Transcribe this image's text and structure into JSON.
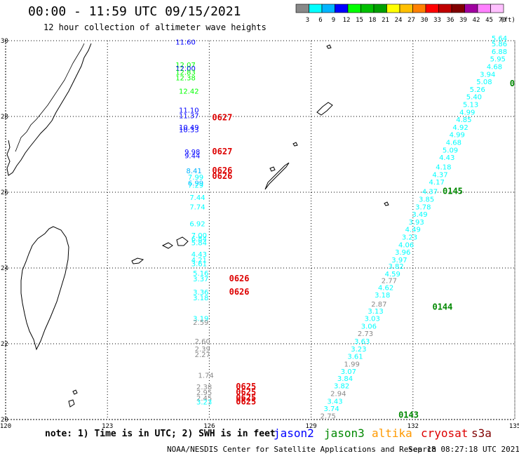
{
  "header": {
    "title": "00:00 - 11:59 UTC 09/15/2021",
    "subtitle": "12 hour collection of altimeter wave heights"
  },
  "color_scale": {
    "colors": [
      "#888888",
      "#00ffff",
      "#00b4ff",
      "#0000ff",
      "#00ff00",
      "#00c000",
      "#00a000",
      "#ffff00",
      "#ffc000",
      "#ff8000",
      "#ff0000",
      "#c00000",
      "#800000",
      "#a000a0",
      "#ff80ff",
      "#ffc0ff"
    ],
    "labels": [
      "3",
      "6",
      "9",
      "12",
      "15",
      "18",
      "21",
      "24",
      "27",
      "30",
      "33",
      "36",
      "39",
      "42",
      "45",
      "70"
    ],
    "unit": "(ft)"
  },
  "axes": {
    "lon_labels": [
      "120",
      "123",
      "126",
      "129",
      "132",
      "135"
    ],
    "lat_labels": [
      "20",
      "22",
      "24",
      "26",
      "28",
      "30"
    ],
    "lon_values": [
      120,
      123,
      126,
      129,
      132,
      135
    ],
    "lat_values": [
      20,
      22,
      24,
      26,
      28,
      30
    ]
  },
  "time_labels": [
    {
      "text": "0627",
      "lon": 126.0,
      "lat": 27.9,
      "mission": "cryosat"
    },
    {
      "text": "0627",
      "lon": 126.0,
      "lat": 27.0,
      "mission": "cryosat"
    },
    {
      "text": "0626",
      "lon": 126.0,
      "lat": 26.5,
      "mission": "cryosat"
    },
    {
      "text": "0626",
      "lon": 126.0,
      "lat": 26.35,
      "mission": "cryosat"
    },
    {
      "text": "0626",
      "lon": 126.5,
      "lat": 23.65,
      "mission": "cryosat"
    },
    {
      "text": "0626",
      "lon": 126.5,
      "lat": 23.3,
      "mission": "cryosat"
    },
    {
      "text": "0625",
      "lon": 126.7,
      "lat": 20.8,
      "mission": "cryosat"
    },
    {
      "text": "0625",
      "lon": 126.7,
      "lat": 20.65,
      "mission": "cryosat"
    },
    {
      "text": "0625",
      "lon": 126.7,
      "lat": 20.5,
      "mission": "cryosat"
    },
    {
      "text": "0625",
      "lon": 126.7,
      "lat": 20.4,
      "mission": "cryosat"
    },
    {
      "text": "0145",
      "lon": 132.5,
      "lat": 25.95,
      "mission": "jason3"
    },
    {
      "text": "0144",
      "lon": 132.2,
      "lat": 22.9,
      "mission": "jason3"
    },
    {
      "text": "0143",
      "lon": 131.2,
      "lat": 20.05,
      "mission": "jason3"
    },
    {
      "text": "0",
      "lon": 134.9,
      "lat": 28.8,
      "mission": "jason3"
    }
  ],
  "wave_heights": [
    {
      "v": "11.60",
      "lon": 125.3,
      "lat": 29.9,
      "c": "#0000ff"
    },
    {
      "v": "12.07",
      "lon": 125.3,
      "lat": 29.3,
      "c": "#00ff00"
    },
    {
      "v": "12.00",
      "lon": 125.3,
      "lat": 29.2,
      "c": "#0000ff"
    },
    {
      "v": "12.83",
      "lon": 125.3,
      "lat": 29.1,
      "c": "#00ff00"
    },
    {
      "v": "12.38",
      "lon": 125.3,
      "lat": 28.95,
      "c": "#00ff00"
    },
    {
      "v": "12.42",
      "lon": 125.4,
      "lat": 28.6,
      "c": "#00ff00"
    },
    {
      "v": "11.10",
      "lon": 125.4,
      "lat": 28.1,
      "c": "#0000ff"
    },
    {
      "v": "11.37",
      "lon": 125.4,
      "lat": 27.95,
      "c": "#0000ff"
    },
    {
      "v": "10.49",
      "lon": 125.4,
      "lat": 27.65,
      "c": "#0000ff"
    },
    {
      "v": "10.33",
      "lon": 125.4,
      "lat": 27.58,
      "c": "#0000ff"
    },
    {
      "v": "9.98",
      "lon": 125.5,
      "lat": 27.0,
      "c": "#0000ff"
    },
    {
      "v": "9.44",
      "lon": 125.5,
      "lat": 26.9,
      "c": "#0000ff"
    },
    {
      "v": "8.41",
      "lon": 125.55,
      "lat": 26.5,
      "c": "#00b4ff"
    },
    {
      "v": "7.99",
      "lon": 125.6,
      "lat": 26.33,
      "c": "#00ffff"
    },
    {
      "v": "6.99",
      "lon": 125.6,
      "lat": 26.18,
      "c": "#00b4ff"
    },
    {
      "v": "7.29",
      "lon": 125.6,
      "lat": 26.12,
      "c": "#00ffff"
    },
    {
      "v": "7.44",
      "lon": 125.65,
      "lat": 25.8,
      "c": "#00ffff"
    },
    {
      "v": "7.74",
      "lon": 125.65,
      "lat": 25.55,
      "c": "#00ffff"
    },
    {
      "v": "6.92",
      "lon": 125.65,
      "lat": 25.1,
      "c": "#00ffff"
    },
    {
      "v": "7.00",
      "lon": 125.7,
      "lat": 24.8,
      "c": "#00ffff"
    },
    {
      "v": "6.84",
      "lon": 125.7,
      "lat": 24.7,
      "c": "#00ffff"
    },
    {
      "v": "5.84",
      "lon": 125.7,
      "lat": 24.6,
      "c": "#00ffff"
    },
    {
      "v": "4.43",
      "lon": 125.7,
      "lat": 24.3,
      "c": "#00ffff"
    },
    {
      "v": "4.21",
      "lon": 125.7,
      "lat": 24.15,
      "c": "#00ffff"
    },
    {
      "v": "3.61",
      "lon": 125.7,
      "lat": 24.05,
      "c": "#00ffff"
    },
    {
      "v": "5.16",
      "lon": 125.75,
      "lat": 23.8,
      "c": "#00ffff"
    },
    {
      "v": "3.37",
      "lon": 125.75,
      "lat": 23.65,
      "c": "#00ffff"
    },
    {
      "v": "3.36",
      "lon": 125.75,
      "lat": 23.3,
      "c": "#00ffff"
    },
    {
      "v": "3.18",
      "lon": 125.75,
      "lat": 23.15,
      "c": "#00ffff"
    },
    {
      "v": "3.19",
      "lon": 125.75,
      "lat": 22.6,
      "c": "#00ffff"
    },
    {
      "v": "2.59",
      "lon": 125.75,
      "lat": 22.5,
      "c": "#888888"
    },
    {
      "v": "2.60",
      "lon": 125.8,
      "lat": 22.0,
      "c": "#888888"
    },
    {
      "v": "2.39",
      "lon": 125.8,
      "lat": 21.8,
      "c": "#888888"
    },
    {
      "v": "2.27",
      "lon": 125.8,
      "lat": 21.65,
      "c": "#888888"
    },
    {
      "v": "1.74",
      "lon": 125.9,
      "lat": 21.1,
      "c": "#888888"
    },
    {
      "v": "2.38",
      "lon": 125.85,
      "lat": 20.8,
      "c": "#888888"
    },
    {
      "v": "2.95",
      "lon": 125.85,
      "lat": 20.65,
      "c": "#888888"
    },
    {
      "v": "2.45",
      "lon": 125.85,
      "lat": 20.5,
      "c": "#888888"
    },
    {
      "v": "3.23",
      "lon": 125.85,
      "lat": 20.4,
      "c": "#00ffff"
    },
    {
      "v": "5.64",
      "lon": 134.7,
      "lat": 30.0,
      "c": "#00ffff"
    },
    {
      "v": "5.86",
      "lon": 134.8,
      "lat": 29.85,
      "c": "#00ffff"
    },
    {
      "v": "6.88",
      "lon": 134.7,
      "lat": 29.65,
      "c": "#00ffff"
    },
    {
      "v": "5.95",
      "lon": 134.5,
      "lat": 29.45,
      "c": "#00ffff"
    },
    {
      "v": "4.68",
      "lon": 134.4,
      "lat": 29.25,
      "c": "#00ffff"
    },
    {
      "v": "3.94",
      "lon": 134.2,
      "lat": 29.05,
      "c": "#00ffff"
    },
    {
      "v": "5.08",
      "lon": 134.1,
      "lat": 28.85,
      "c": "#00ffff"
    },
    {
      "v": "5.26",
      "lon": 133.9,
      "lat": 28.65,
      "c": "#00ffff"
    },
    {
      "v": "5.40",
      "lon": 133.8,
      "lat": 28.45,
      "c": "#00ffff"
    },
    {
      "v": "5.13",
      "lon": 133.7,
      "lat": 28.25,
      "c": "#00ffff"
    },
    {
      "v": "4.99",
      "lon": 133.6,
      "lat": 28.05,
      "c": "#00ffff"
    },
    {
      "v": "4.85",
      "lon": 133.5,
      "lat": 27.85,
      "c": "#00ffff"
    },
    {
      "v": "4.92",
      "lon": 133.4,
      "lat": 27.65,
      "c": "#00ffff"
    },
    {
      "v": "4.99",
      "lon": 133.3,
      "lat": 27.45,
      "c": "#00ffff"
    },
    {
      "v": "4.68",
      "lon": 133.2,
      "lat": 27.25,
      "c": "#00ffff"
    },
    {
      "v": "5.09",
      "lon": 133.1,
      "lat": 27.05,
      "c": "#00ffff"
    },
    {
      "v": "4.43",
      "lon": 133.0,
      "lat": 26.85,
      "c": "#00ffff"
    },
    {
      "v": "4.18",
      "lon": 132.9,
      "lat": 26.6,
      "c": "#00ffff"
    },
    {
      "v": "4.37",
      "lon": 132.8,
      "lat": 26.4,
      "c": "#00ffff"
    },
    {
      "v": "4.17",
      "lon": 132.7,
      "lat": 26.2,
      "c": "#00ffff"
    },
    {
      "v": "4.37",
      "lon": 132.5,
      "lat": 25.95,
      "c": "#00ffff"
    },
    {
      "v": "3.85",
      "lon": 132.4,
      "lat": 25.75,
      "c": "#00ffff"
    },
    {
      "v": "3.78",
      "lon": 132.3,
      "lat": 25.55,
      "c": "#00ffff"
    },
    {
      "v": "3.49",
      "lon": 132.2,
      "lat": 25.35,
      "c": "#00ffff"
    },
    {
      "v": "3.93",
      "lon": 132.1,
      "lat": 25.15,
      "c": "#00ffff"
    },
    {
      "v": "4.49",
      "lon": 132.0,
      "lat": 24.95,
      "c": "#00ffff"
    },
    {
      "v": "3.23",
      "lon": 131.9,
      "lat": 24.75,
      "c": "#00ffff"
    },
    {
      "v": "4.06",
      "lon": 131.8,
      "lat": 24.55,
      "c": "#00ffff"
    },
    {
      "v": "3.96",
      "lon": 131.7,
      "lat": 24.35,
      "c": "#00ffff"
    },
    {
      "v": "3.97",
      "lon": 131.6,
      "lat": 24.15,
      "c": "#00ffff"
    },
    {
      "v": "3.82",
      "lon": 131.5,
      "lat": 23.98,
      "c": "#00ffff"
    },
    {
      "v": "4.59",
      "lon": 131.4,
      "lat": 23.78,
      "c": "#00ffff"
    },
    {
      "v": "2.77",
      "lon": 131.3,
      "lat": 23.6,
      "c": "#888888"
    },
    {
      "v": "4.62",
      "lon": 131.2,
      "lat": 23.42,
      "c": "#00ffff"
    },
    {
      "v": "3.18",
      "lon": 131.1,
      "lat": 23.22,
      "c": "#00ffff"
    },
    {
      "v": "2.87",
      "lon": 131.0,
      "lat": 22.98,
      "c": "#888888"
    },
    {
      "v": "3.13",
      "lon": 130.9,
      "lat": 22.8,
      "c": "#00ffff"
    },
    {
      "v": "3.03",
      "lon": 130.8,
      "lat": 22.6,
      "c": "#00ffff"
    },
    {
      "v": "3.06",
      "lon": 130.7,
      "lat": 22.4,
      "c": "#00ffff"
    },
    {
      "v": "2.73",
      "lon": 130.6,
      "lat": 22.2,
      "c": "#888888"
    },
    {
      "v": "3.63",
      "lon": 130.5,
      "lat": 22.0,
      "c": "#00ffff"
    },
    {
      "v": "3.23",
      "lon": 130.4,
      "lat": 21.8,
      "c": "#00ffff"
    },
    {
      "v": "3.61",
      "lon": 130.3,
      "lat": 21.6,
      "c": "#00ffff"
    },
    {
      "v": "1.99",
      "lon": 130.2,
      "lat": 21.4,
      "c": "#888888"
    },
    {
      "v": "3.07",
      "lon": 130.1,
      "lat": 21.2,
      "c": "#00ffff"
    },
    {
      "v": "3.84",
      "lon": 130.0,
      "lat": 21.02,
      "c": "#00ffff"
    },
    {
      "v": "3.82",
      "lon": 129.9,
      "lat": 20.82,
      "c": "#00ffff"
    },
    {
      "v": "2.94",
      "lon": 129.8,
      "lat": 20.62,
      "c": "#888888"
    },
    {
      "v": "3.43",
      "lon": 129.7,
      "lat": 20.42,
      "c": "#00ffff"
    },
    {
      "v": "3.74",
      "lon": 129.6,
      "lat": 20.22,
      "c": "#00ffff"
    },
    {
      "v": "2.75",
      "lon": 129.5,
      "lat": 20.03,
      "c": "#888888"
    }
  ],
  "footer": {
    "note": "note: 1) Time is in UTC; 2) SWH is in feet",
    "missions": [
      {
        "name": "jason2",
        "color": "#0000ff"
      },
      {
        "name": "jason3",
        "color": "#008800"
      },
      {
        "name": "altika",
        "color": "#ff9900"
      },
      {
        "name": "cryosat",
        "color": "#dd0000"
      },
      {
        "name": "s3a",
        "color": "#800000"
      }
    ],
    "credit": "NOAA/NESDIS Center for Satellite Applications and Research",
    "generated": "Sep 18 08:27:18 UTC 2021"
  }
}
